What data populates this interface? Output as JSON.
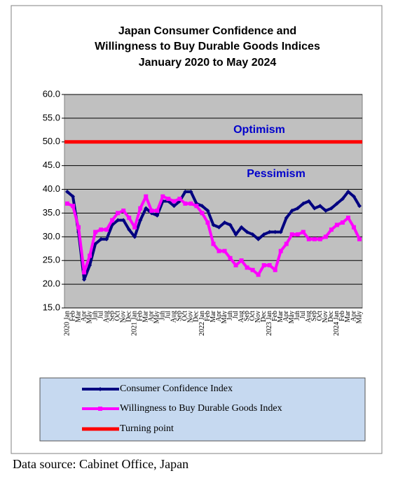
{
  "chart_data": {
    "type": "line",
    "title": [
      "Japan Consumer Confidence and",
      "Willingness to Buy Durable Goods Indices",
      "January 2020 to May 2024"
    ],
    "categories": [
      "2020 Jan",
      "Feb",
      "Mar",
      "Apr",
      "May",
      "Jun",
      "Jul",
      "Aug",
      "Sep",
      "Oct",
      "Nov",
      "Dec",
      "2021 Jan",
      "Feb",
      "Mar",
      "Apr",
      "May",
      "Jun",
      "Jul",
      "Aug",
      "Sep",
      "Oct",
      "Nov",
      "Dec",
      "2022 Jan",
      "Feb",
      "Mar",
      "Apr",
      "May",
      "Jun",
      "Jul",
      "Aug",
      "Sep",
      "Oct",
      "Nov",
      "Dec",
      "2023 Jan",
      "Feb",
      "Mar",
      "Apr",
      "May",
      "Jun",
      "Jul",
      "Aug",
      "Sep",
      "Oct",
      "Nov",
      "Dec",
      "2024 Jan",
      "Feb",
      "Mar",
      "Apr",
      "May"
    ],
    "series": [
      {
        "name": "Consumer Confidence Index",
        "color": "#000080",
        "marker": "diamond",
        "values": [
          39.5,
          38.5,
          31,
          21,
          24,
          28.5,
          29.5,
          29.5,
          32.5,
          33.5,
          33.5,
          31.5,
          30,
          33.5,
          36,
          35,
          34.5,
          37.5,
          37.5,
          36.5,
          37.5,
          39.5,
          39.5,
          37,
          36.5,
          35.5,
          32.5,
          32,
          33,
          32.5,
          30.5,
          32,
          31,
          30.5,
          29.5,
          30.5,
          31,
          31,
          31,
          34,
          35.5,
          36,
          37,
          37.5,
          36,
          36.5,
          35.5,
          36,
          37,
          38,
          39.5,
          38.5,
          36.5
        ]
      },
      {
        "name": "Willingness to Buy Durable Goods Index",
        "color": "#ff00ff",
        "marker": "square",
        "values": [
          37,
          36.5,
          32,
          22.5,
          26,
          31,
          31.5,
          31.5,
          33.5,
          35,
          35.5,
          34,
          32,
          36,
          38.5,
          35.5,
          35.5,
          38.5,
          38,
          37.5,
          38,
          37,
          37,
          36.5,
          35,
          33,
          28.5,
          27,
          27,
          25.5,
          24,
          25,
          23.5,
          23,
          22,
          24,
          24,
          23,
          27,
          28.5,
          30.5,
          30.5,
          31,
          29.5,
          29.5,
          29.5,
          30,
          31.5,
          32.5,
          33,
          34,
          32,
          29.5
        ]
      }
    ],
    "reference_line": {
      "name": "Turning point",
      "value": 50,
      "color": "#ff0000"
    },
    "annotations": [
      {
        "text": "Optimism",
        "value": 52.5
      },
      {
        "text": "Pessimism",
        "value": 43.2
      }
    ],
    "ylim": [
      15,
      60
    ],
    "yticks": [
      {
        "value": 15,
        "label": "15.0"
      },
      {
        "value": 20,
        "label": "20.0"
      },
      {
        "value": 25,
        "label": "25.0"
      },
      {
        "value": 30,
        "label": "30.0"
      },
      {
        "value": 35,
        "label": "35.0"
      },
      {
        "value": 40,
        "label": "40.0"
      },
      {
        "value": 45,
        "label": "45.0"
      },
      {
        "value": 50,
        "label": "50.0"
      },
      {
        "value": 55,
        "label": "55.0"
      },
      {
        "value": 60,
        "label": "60.0"
      }
    ],
    "grid": true,
    "legend": "bottom",
    "source": "Data source: Cabinet Office, Japan"
  }
}
